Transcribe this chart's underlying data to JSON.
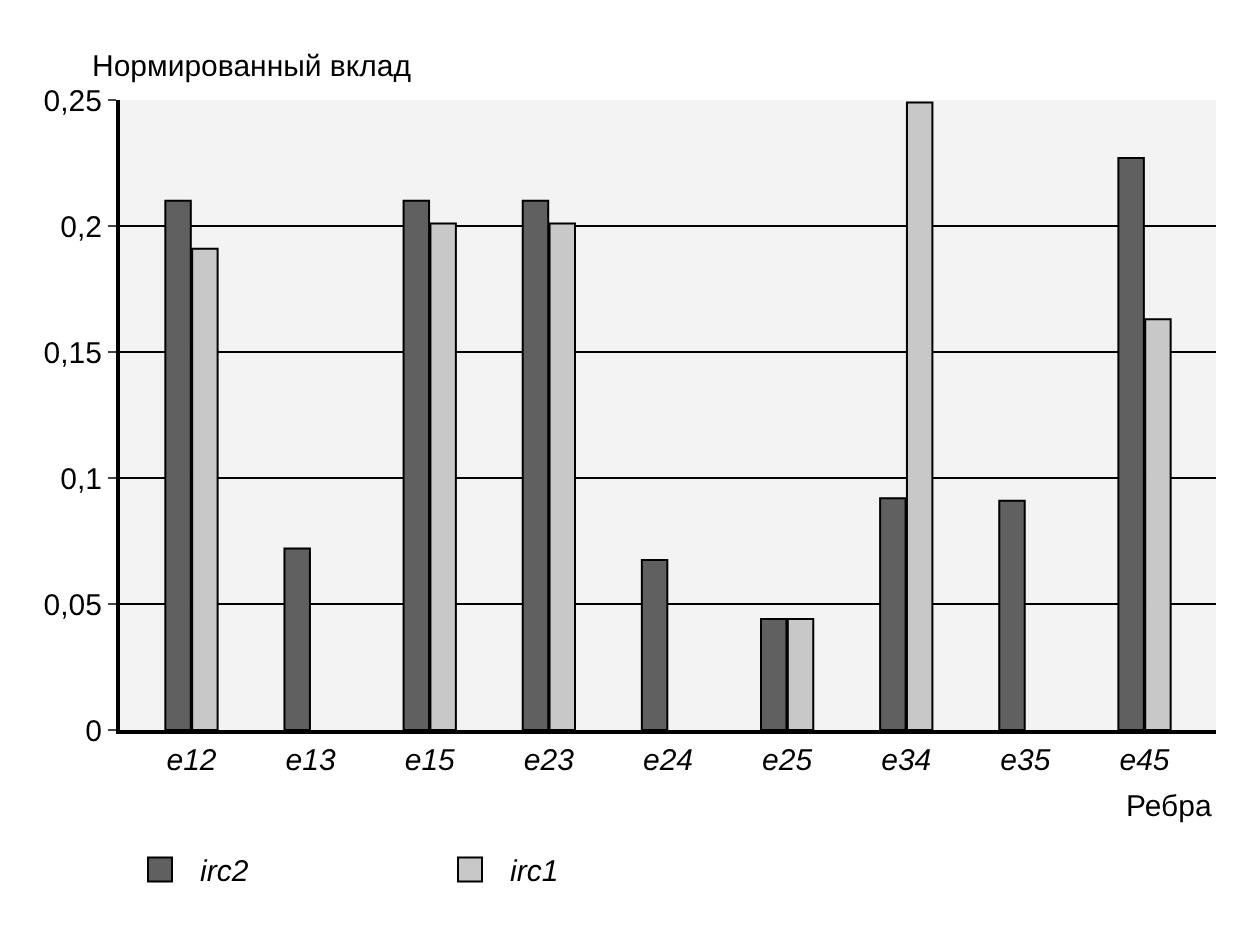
{
  "chart_data": {
    "type": "bar",
    "ylabel": "Нормированный вклад",
    "xlabel": "Ребра",
    "categories": [
      "e12",
      "e13",
      "e15",
      "e23",
      "e24",
      "e25",
      "e34",
      "e35",
      "e45"
    ],
    "series": [
      {
        "name": "irc2",
        "color": "#606060",
        "values": [
          0.21,
          0.072,
          0.21,
          0.21,
          0.0675,
          0.044,
          0.092,
          0.091,
          0.227
        ]
      },
      {
        "name": "irc1",
        "color": "#c8c8c8",
        "values": [
          0.191,
          null,
          0.201,
          0.201,
          null,
          0.044,
          0.249,
          null,
          0.163
        ]
      }
    ],
    "ylim": [
      0,
      0.25
    ],
    "yticks": [
      {
        "value": 0,
        "label": "0"
      },
      {
        "value": 0.05,
        "label": "0,05"
      },
      {
        "value": 0.1,
        "label": "0,1"
      },
      {
        "value": 0.15,
        "label": "0,15"
      },
      {
        "value": 0.2,
        "label": "0,2"
      },
      {
        "value": 0.25,
        "label": "0,25"
      }
    ],
    "grid": "y",
    "legend": "bottom left"
  }
}
